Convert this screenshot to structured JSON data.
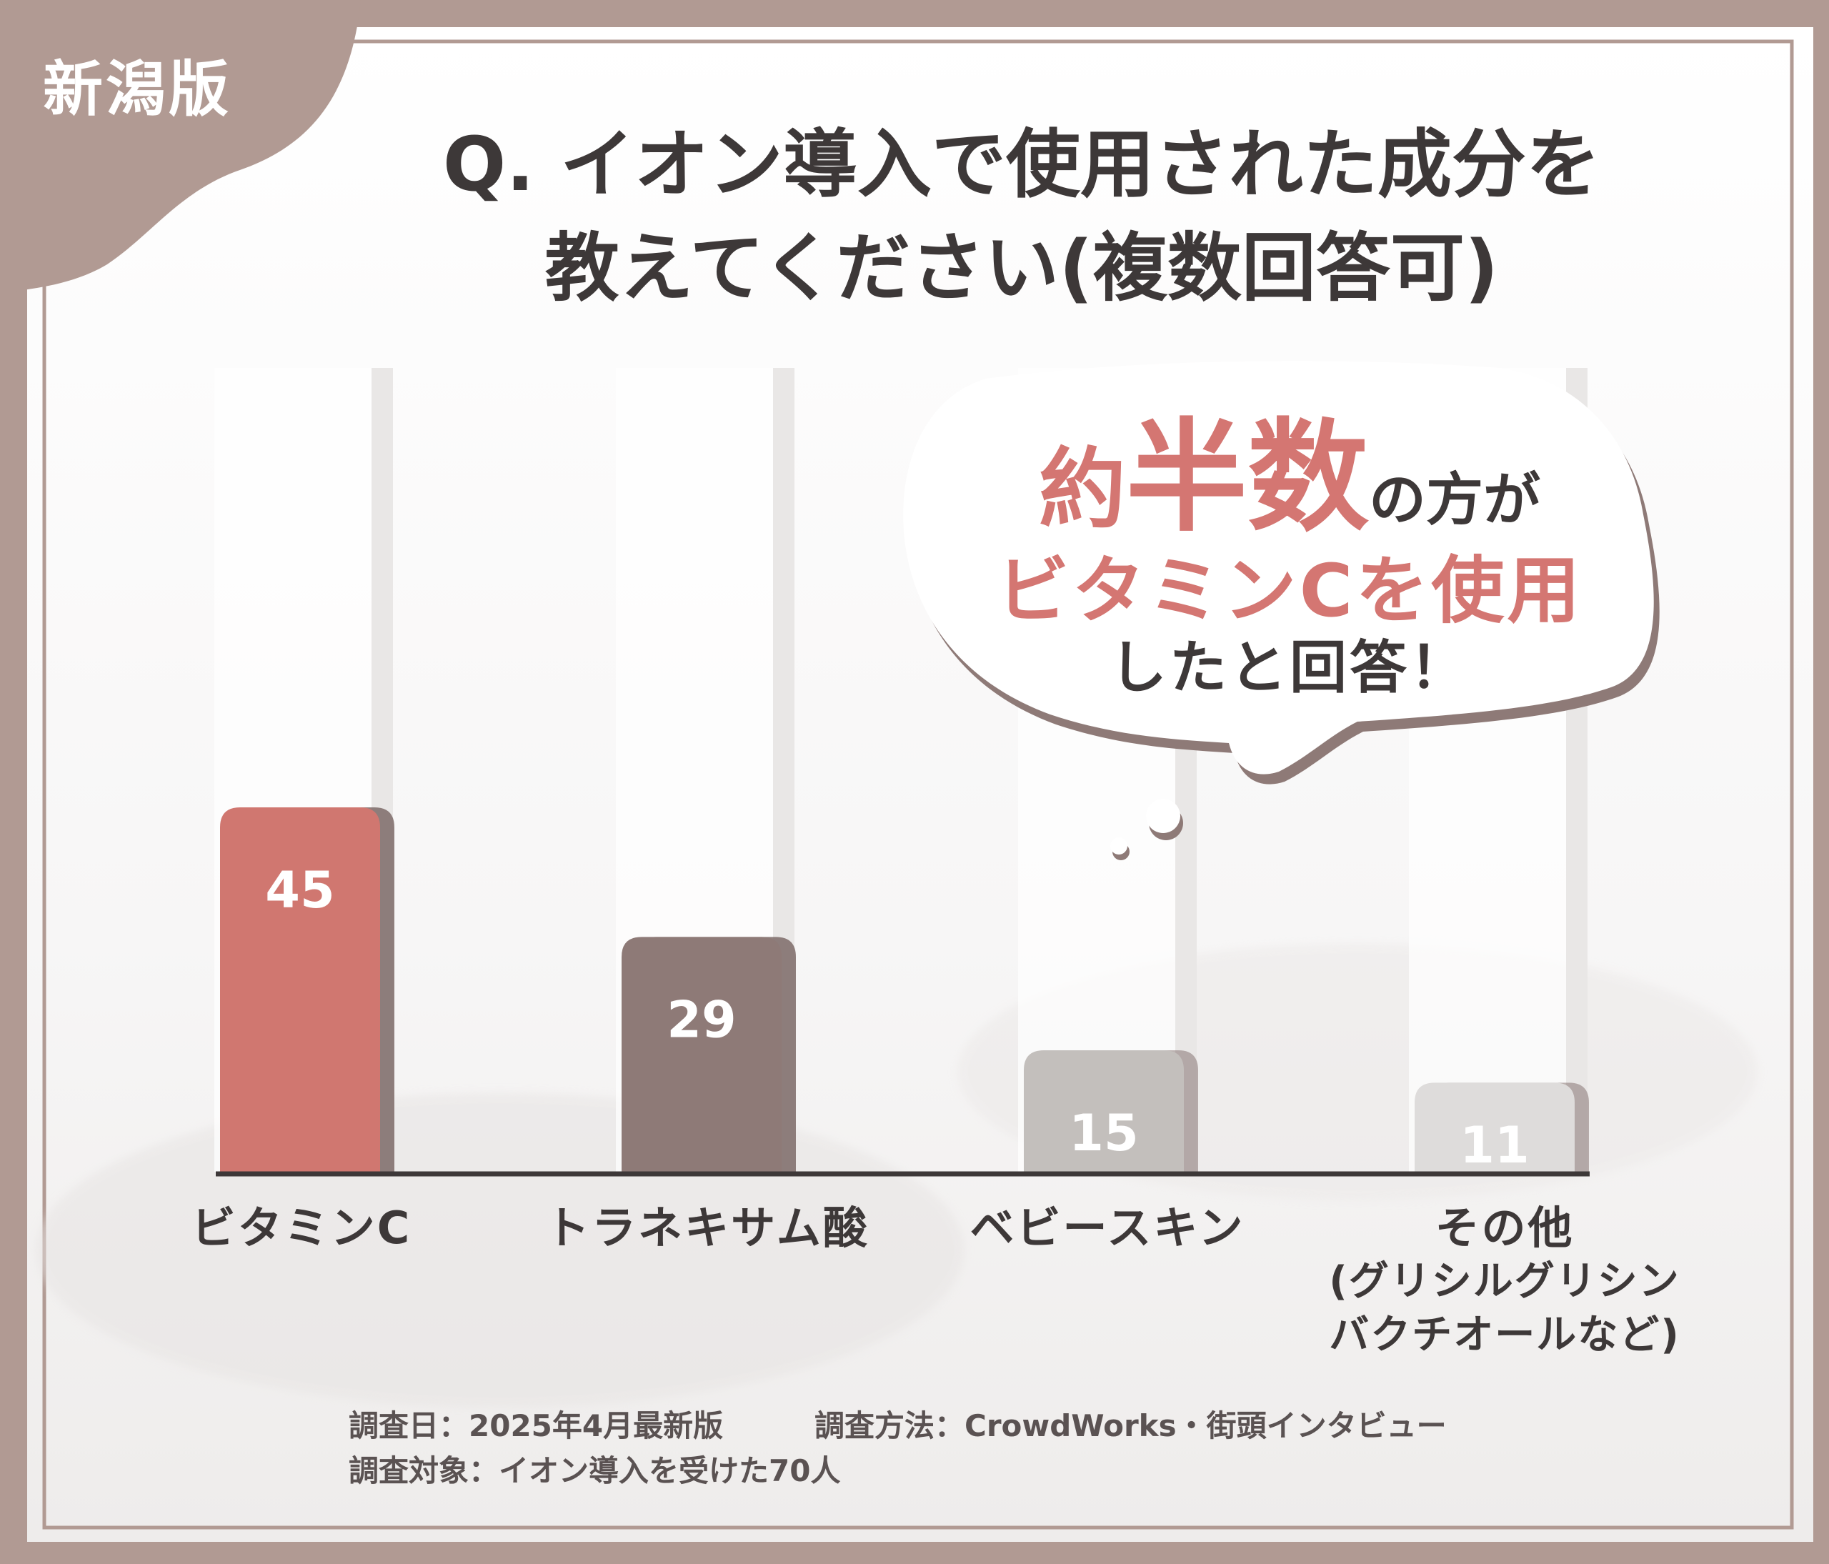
{
  "corner_label": "新潟版",
  "title": {
    "line1": "Q. イオン導入で使用された成分を",
    "line2": "教えてください(複数回答可)"
  },
  "callout": {
    "line1_pre": "約",
    "line1_big": "半数",
    "line1_post": "の方が",
    "line2": "ビタミンCを使用",
    "line3": "したと回答！"
  },
  "chart_data": {
    "type": "bar",
    "categories": [
      "ビタミンC",
      "トラネキサム酸",
      "ベビースキン",
      "その他"
    ],
    "category_sublabels": [
      "",
      "",
      "",
      "(グリシルグリシン\nバクチオールなど)"
    ],
    "values": [
      45,
      29,
      15,
      11
    ],
    "data_labels": [
      "45",
      "29",
      "15",
      "11"
    ],
    "ylim": [
      0,
      50
    ],
    "bar_colors": [
      "#d07770",
      "#8e7a77",
      "#c3bfbc",
      "#dedcdb"
    ],
    "label_colors": [
      "#ffffff",
      "#ffffff",
      "#ffffff",
      "#ffffff"
    ],
    "grid": false,
    "legend": "none"
  },
  "footer": {
    "date": "調査日：2025年4月最新版",
    "method": "調査方法：CrowdWorks・街頭インタビュー",
    "target": "調査対象：イオン導入を受けた70人"
  },
  "colors": {
    "frame": "#b19a93",
    "accent": "#d47672",
    "text": "#3d3838"
  }
}
